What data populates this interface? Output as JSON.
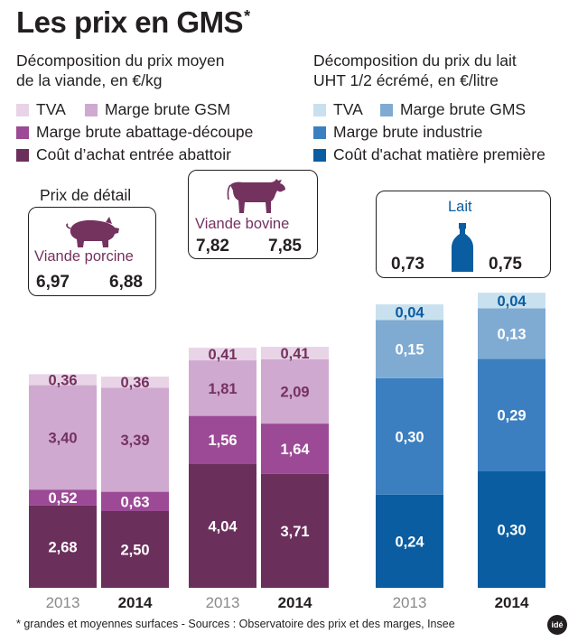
{
  "title": "Les prix en GMS",
  "title_asterisk": "*",
  "meat": {
    "subtitle_line1": "Décomposition du prix moyen",
    "subtitle_line2": "de la viande, en €/kg",
    "legend": [
      {
        "label": "TVA",
        "color": "#e8d4e6"
      },
      {
        "label": "Marge brute GSM",
        "color": "#cfa9cf"
      },
      {
        "label": "Marge brute abattage-découpe",
        "color": "#9c4a95"
      },
      {
        "label": "Coût d’achat entrée abattoir",
        "color": "#6b2f5b"
      }
    ],
    "detail_label": "Prix de détail",
    "porcine": {
      "name": "Viande porcine",
      "total_2013": "6,97",
      "total_2014": "6,88"
    },
    "bovine": {
      "name": "Viande bovine",
      "total_2013": "7,82",
      "total_2014": "7,85"
    }
  },
  "milk": {
    "subtitle_line1": "Décomposition du prix du lait",
    "subtitle_line2": "UHT 1/2 écrémé, en €/litre",
    "legend": [
      {
        "label": "TVA",
        "color": "#c9e0ee"
      },
      {
        "label": "Marge brute GMS",
        "color": "#7fabd3"
      },
      {
        "label": "Marge brute industrie",
        "color": "#3c7fc0"
      },
      {
        "label": "Coût d'achat matière première",
        "color": "#0a5da0"
      }
    ],
    "lait": {
      "name": "Lait",
      "total_2013": "0,73",
      "total_2014": "0,75"
    }
  },
  "chart_data": {
    "type": "bar",
    "stacked": true,
    "categories": [
      "2013",
      "2014",
      "2013",
      "2014",
      "2013",
      "2014"
    ],
    "groups": [
      "Viande porcine",
      "Viande porcine",
      "Viande bovine",
      "Viande bovine",
      "Lait",
      "Lait"
    ],
    "series": [
      {
        "name": "Coût d’achat entrée abattoir / Coût d'achat matière première",
        "values": [
          2.68,
          2.5,
          4.04,
          3.71,
          0.24,
          0.3
        ],
        "labels": [
          "2,68",
          "2,50",
          "4,04",
          "3,71",
          "0,24",
          "0,30"
        ]
      },
      {
        "name": "Marge brute abattage-découpe / Marge brute industrie",
        "values": [
          0.52,
          0.63,
          1.56,
          1.64,
          0.3,
          0.29
        ],
        "labels": [
          "0,52",
          "0,63",
          "1,56",
          "1,64",
          "0,30",
          "0,29"
        ]
      },
      {
        "name": "Marge brute GSM / Marge brute GMS",
        "values": [
          3.4,
          3.39,
          1.81,
          2.09,
          0.15,
          0.13
        ],
        "labels": [
          "3,40",
          "3,39",
          "1,81",
          "2,09",
          "0,15",
          "0,13"
        ]
      },
      {
        "name": "TVA",
        "values": [
          0.36,
          0.36,
          0.41,
          0.41,
          0.04,
          0.04
        ],
        "labels": [
          "0,36",
          "0,36",
          "0,41",
          "0,41",
          "0,04",
          "0,04"
        ]
      }
    ],
    "meat_colors": [
      "#6b2f5b",
      "#9c4a95",
      "#cfa9cf",
      "#e8d4e6"
    ],
    "milk_colors": [
      "#0a5da0",
      "#3c7fc0",
      "#7fabd3",
      "#c9e0ee"
    ],
    "year_labels": [
      "2013",
      "2014",
      "2013",
      "2014",
      "2013",
      "2014"
    ],
    "year_bold": [
      false,
      true,
      false,
      true,
      false,
      true
    ]
  },
  "footnote": "* grandes et moyennes surfaces - Sources : Observatoire des prix et des marges, Insee",
  "logo_text": "idé"
}
